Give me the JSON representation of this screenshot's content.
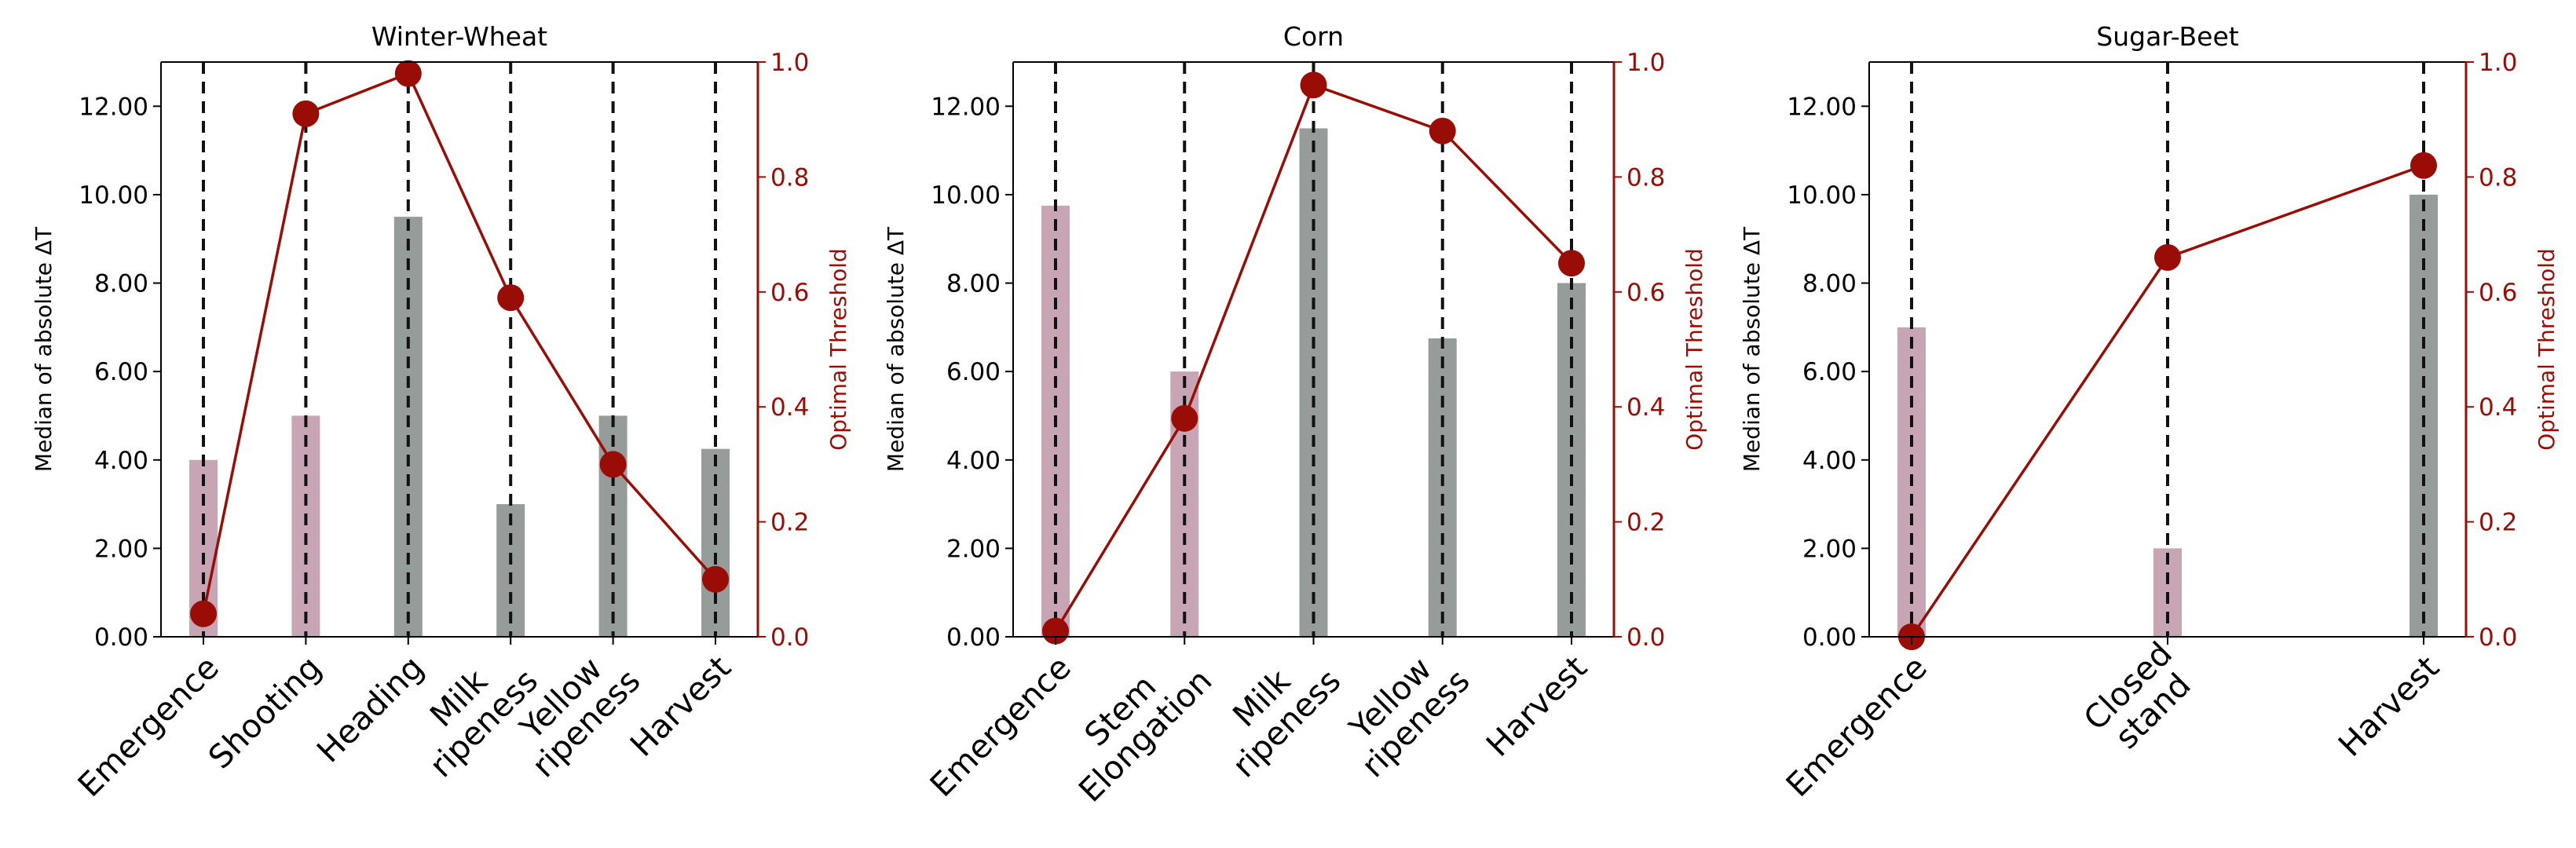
{
  "figure": {
    "left_axis_label": "Median of absolute ΔT",
    "right_axis_label": "Optimal Threshold",
    "colors": {
      "bar_pink": "#c7a5b4",
      "bar_gray": "#959c9a",
      "line_red": "#9a0d06",
      "right_axis_red": "#9a0d06",
      "dashed_black": "#111111",
      "axis_black": "#000000"
    }
  },
  "chart_data": [
    {
      "type": "bar",
      "title": "Winter-Wheat",
      "categories": [
        "Emergence",
        "Shooting",
        "Heading",
        "Milk\nripeness",
        "Yellow\nripeness",
        "Harvest"
      ],
      "bar_values": [
        4.0,
        5.0,
        9.5,
        3.0,
        5.0,
        4.25
      ],
      "bar_colors": [
        "pink",
        "pink",
        "gray",
        "gray",
        "gray",
        "gray"
      ],
      "line_values": [
        0.04,
        0.91,
        0.98,
        0.59,
        0.3,
        0.1
      ],
      "ylabel": "Median of absolute ΔT",
      "ylabel_right": "Optimal Threshold",
      "ylim": [
        0,
        13
      ],
      "ylim_right": [
        0,
        1.0
      ],
      "yticks": [
        "0.00",
        "2.00",
        "4.00",
        "6.00",
        "8.00",
        "10.00",
        "12.00"
      ],
      "yticks_right": [
        "0.0",
        "0.2",
        "0.4",
        "0.6",
        "0.8",
        "1.0"
      ]
    },
    {
      "type": "bar",
      "title": "Corn",
      "categories": [
        "Emergence",
        "Stem\nElongation",
        "Milk\nripeness",
        "Yellow\nripeness",
        "Harvest"
      ],
      "bar_values": [
        9.75,
        6.0,
        11.5,
        6.75,
        8.0
      ],
      "bar_colors": [
        "pink",
        "pink",
        "gray",
        "gray",
        "gray"
      ],
      "line_values": [
        0.01,
        0.38,
        0.96,
        0.88,
        0.65
      ],
      "ylabel": "Median of absolute ΔT",
      "ylabel_right": "Optimal Threshold",
      "ylim": [
        0,
        13
      ],
      "ylim_right": [
        0,
        1.0
      ],
      "yticks": [
        "0.00",
        "2.00",
        "4.00",
        "6.00",
        "8.00",
        "10.00",
        "12.00"
      ],
      "yticks_right": [
        "0.0",
        "0.2",
        "0.4",
        "0.6",
        "0.8",
        "1.0"
      ]
    },
    {
      "type": "bar",
      "title": "Sugar-Beet",
      "categories": [
        "Emergence",
        "Closed\nstand",
        "Harvest"
      ],
      "bar_values": [
        7.0,
        2.0,
        10.0
      ],
      "bar_colors": [
        "pink",
        "pink",
        "gray"
      ],
      "line_values": [
        0.0,
        0.66,
        0.82
      ],
      "ylabel": "Median of absolute ΔT",
      "ylabel_right": "Optimal Threshold",
      "ylim": [
        0,
        13
      ],
      "ylim_right": [
        0,
        1.0
      ],
      "yticks": [
        "0.00",
        "2.00",
        "4.00",
        "6.00",
        "8.00",
        "10.00",
        "12.00"
      ],
      "yticks_right": [
        "0.0",
        "0.2",
        "0.4",
        "0.6",
        "0.8",
        "1.0"
      ]
    }
  ]
}
